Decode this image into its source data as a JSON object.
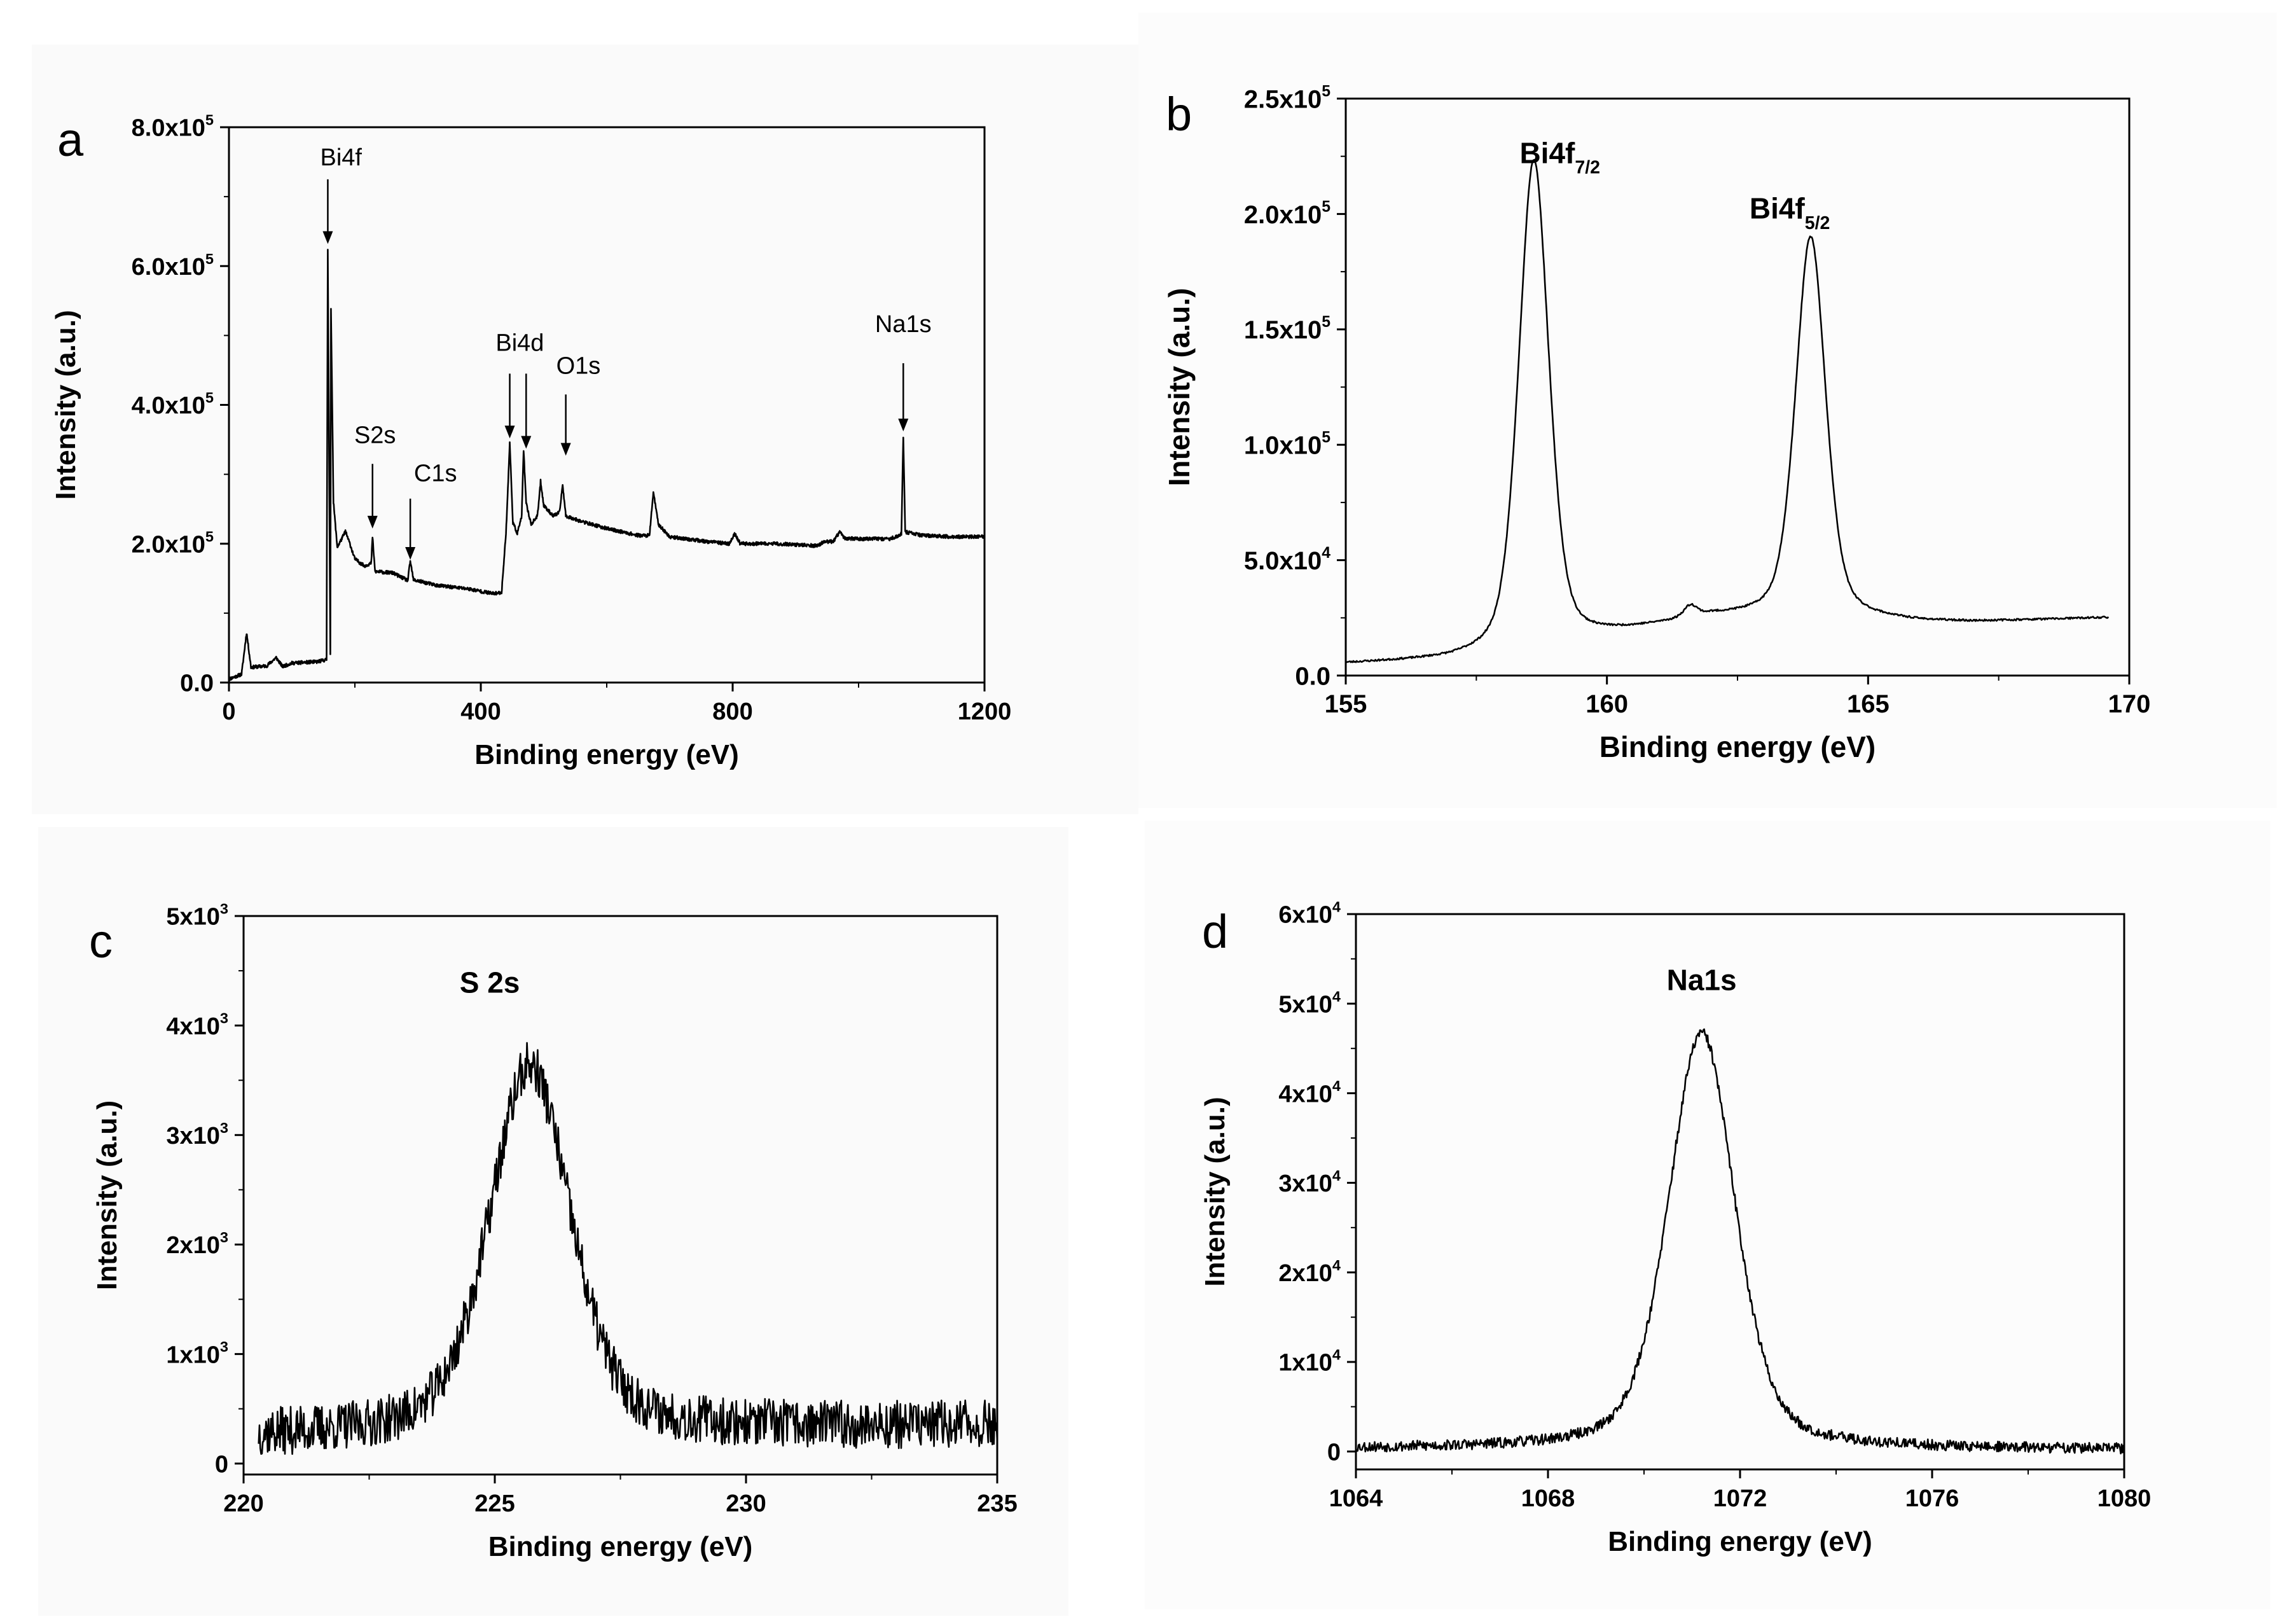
{
  "chart_data": [
    {
      "panel": "a",
      "type": "line",
      "xlabel": "Binding energy (eV)",
      "ylabel": "Intensity (a.u.)",
      "xlim": [
        0,
        1200
      ],
      "ylim": [
        0,
        800000
      ],
      "xticks": [
        0,
        400,
        800,
        1200
      ],
      "xtick_labels": [
        "0",
        "400",
        "800",
        "1200"
      ],
      "yticks": [
        0,
        200000,
        400000,
        600000,
        800000
      ],
      "ytick_labels": [
        {
          "m": "0.0",
          "e": ""
        },
        {
          "m": "2.0x10",
          "e": "5"
        },
        {
          "m": "4.0x10",
          "e": "5"
        },
        {
          "m": "6.0x10",
          "e": "5"
        },
        {
          "m": "8.0x10",
          "e": "5"
        }
      ],
      "baseline": [
        [
          0,
          5000
        ],
        [
          20,
          12000
        ],
        [
          28,
          72000
        ],
        [
          35,
          22000
        ],
        [
          60,
          24000
        ],
        [
          75,
          36000
        ],
        [
          85,
          23000
        ],
        [
          100,
          28000
        ],
        [
          140,
          30000
        ],
        [
          155,
          33000
        ],
        [
          157,
          625000
        ],
        [
          161,
          40000
        ],
        [
          162,
          540000
        ],
        [
          166,
          260000
        ],
        [
          172,
          195000
        ],
        [
          178,
          205000
        ],
        [
          185,
          218000
        ],
        [
          192,
          200000
        ],
        [
          200,
          178000
        ],
        [
          215,
          168000
        ],
        [
          226,
          172000
        ],
        [
          228,
          210000
        ],
        [
          232,
          160000
        ],
        [
          260,
          158000
        ],
        [
          284,
          147000
        ],
        [
          288,
          175000
        ],
        [
          293,
          148000
        ],
        [
          330,
          140000
        ],
        [
          380,
          135000
        ],
        [
          420,
          128000
        ],
        [
          433,
          130000
        ],
        [
          440,
          215000
        ],
        [
          446,
          345000
        ],
        [
          451,
          230000
        ],
        [
          458,
          215000
        ],
        [
          465,
          240000
        ],
        [
          468,
          335000
        ],
        [
          472,
          258000
        ],
        [
          480,
          228000
        ],
        [
          490,
          240000
        ],
        [
          495,
          290000
        ],
        [
          500,
          255000
        ],
        [
          515,
          240000
        ],
        [
          525,
          245000
        ],
        [
          530,
          285000
        ],
        [
          535,
          240000
        ],
        [
          560,
          232000
        ],
        [
          600,
          222000
        ],
        [
          650,
          212000
        ],
        [
          668,
          212000
        ],
        [
          674,
          275000
        ],
        [
          682,
          228000
        ],
        [
          700,
          210000
        ],
        [
          760,
          203000
        ],
        [
          795,
          200000
        ],
        [
          803,
          215000
        ],
        [
          812,
          200000
        ],
        [
          870,
          200000
        ],
        [
          935,
          197000
        ],
        [
          945,
          203000
        ],
        [
          960,
          203000
        ],
        [
          970,
          217000
        ],
        [
          978,
          208000
        ],
        [
          1000,
          207000
        ],
        [
          1050,
          207000
        ],
        [
          1065,
          212000
        ],
        [
          1068,
          215000
        ],
        [
          1071,
          355000
        ],
        [
          1074,
          217000
        ],
        [
          1100,
          212000
        ],
        [
          1150,
          210000
        ],
        [
          1200,
          210000
        ]
      ],
      "noise": 2500,
      "annotations": [
        {
          "label": "Bi4f",
          "x": 157,
          "tip": 630000,
          "tail": 725000,
          "text_y": 745000,
          "text_x": 178
        },
        {
          "label": "S2s",
          "x": 228,
          "tip": 220000,
          "tail": 315000,
          "text_y": 345000,
          "text_x": 232
        },
        {
          "label": "C1s",
          "x": 288,
          "tip": 175000,
          "tail": 265000,
          "text_y": 290000,
          "text_x": 328
        },
        {
          "label": "Bi4d",
          "x": 446,
          "tip": 350000,
          "tail": 445000,
          "text_y": 478000,
          "text_x": 462
        },
        {
          "label": "",
          "x": 472,
          "tip": 335000,
          "tail": 445000,
          "text_y": 0,
          "text_x": 0
        },
        {
          "label": "O1s",
          "x": 535,
          "tip": 325000,
          "tail": 415000,
          "text_y": 445000,
          "text_x": 555
        },
        {
          "label": "Na1s",
          "x": 1071,
          "tip": 360000,
          "tail": 460000,
          "text_y": 505000,
          "text_x": 1071
        }
      ]
    },
    {
      "panel": "b",
      "type": "line",
      "xlabel": "Binding energy (eV)",
      "ylabel": "Intensity (a.u.)",
      "xlim": [
        155,
        170
      ],
      "ylim": [
        0,
        250000
      ],
      "xticks": [
        155,
        160,
        165,
        170
      ],
      "xtick_labels": [
        "155",
        "160",
        "165",
        "170"
      ],
      "yticks": [
        0,
        50000,
        100000,
        150000,
        200000,
        250000
      ],
      "ytick_labels": [
        {
          "m": "0.0",
          "e": ""
        },
        {
          "m": "5.0x10",
          "e": "4"
        },
        {
          "m": "1.0x10",
          "e": "5"
        },
        {
          "m": "1.5x10",
          "e": "5"
        },
        {
          "m": "2.0x10",
          "e": "5"
        },
        {
          "m": "2.5x10",
          "e": "5"
        }
      ],
      "xrange": [
        155,
        169.6
      ],
      "baseline": [
        [
          155,
          5000
        ],
        [
          157,
          6500
        ],
        [
          158,
          9000
        ],
        [
          160,
          17000
        ],
        [
          162,
          25000
        ],
        [
          164,
          25000
        ],
        [
          166,
          23000
        ],
        [
          167,
          23000
        ],
        [
          169.6,
          25000
        ]
      ],
      "peaks": [
        [
          158.6,
          212000,
          0.34
        ],
        [
          163.9,
          165000,
          0.34
        ],
        [
          161.6,
          5000,
          0.15
        ]
      ],
      "noise": 400,
      "annotations": [
        {
          "main": "Bi4f",
          "sub": "7/2",
          "x": 159.1,
          "y": 222000
        },
        {
          "main": "Bi4f",
          "sub": "5/2",
          "x": 163.5,
          "y": 198000
        }
      ]
    },
    {
      "panel": "c",
      "type": "line",
      "xlabel": "Binding energy (eV)",
      "ylabel": "Intensity (a.u.)",
      "xlim": [
        220,
        235
      ],
      "ylim": [
        -100,
        5000
      ],
      "xticks": [
        220,
        225,
        230,
        235
      ],
      "xtick_labels": [
        "220",
        "225",
        "230",
        "235"
      ],
      "yticks": [
        0,
        1000,
        2000,
        3000,
        4000,
        5000
      ],
      "ytick_labels": [
        {
          "m": "0",
          "e": ""
        },
        {
          "m": "1x10",
          "e": "3"
        },
        {
          "m": "2x10",
          "e": "3"
        },
        {
          "m": "3x10",
          "e": "3"
        },
        {
          "m": "4x10",
          "e": "3"
        },
        {
          "m": "5x10",
          "e": "3"
        }
      ],
      "xrange": [
        220.3,
        235
      ],
      "baseline": [
        [
          220.3,
          250
        ],
        [
          235,
          350
        ]
      ],
      "peaks": [
        [
          225.7,
          3350,
          0.95
        ]
      ],
      "noise": 220,
      "annotations": [
        {
          "main": "S 2s",
          "sub": "",
          "x": 224.9,
          "y": 4300
        }
      ]
    },
    {
      "panel": "d",
      "type": "line",
      "xlabel": "Binding energy (eV)",
      "ylabel": "Intensity (a.u.)",
      "xlim": [
        1064,
        1080
      ],
      "ylim": [
        -2000,
        60000
      ],
      "xticks": [
        1064,
        1068,
        1072,
        1076,
        1080
      ],
      "xtick_labels": [
        "1064",
        "1068",
        "1072",
        "1076",
        "1080"
      ],
      "yticks": [
        0,
        10000,
        20000,
        30000,
        40000,
        50000,
        60000
      ],
      "ytick_labels": [
        {
          "m": "0",
          "e": ""
        },
        {
          "m": "1x10",
          "e": "4"
        },
        {
          "m": "2x10",
          "e": "4"
        },
        {
          "m": "3x10",
          "e": "4"
        },
        {
          "m": "4x10",
          "e": "4"
        },
        {
          "m": "5x10",
          "e": "4"
        }
      ],
      "ytick_extra": {
        "m": "6x10",
        "e": "4"
      },
      "xrange": [
        1064,
        1080
      ],
      "baseline": [
        [
          1064,
          300
        ],
        [
          1080,
          200
        ]
      ],
      "peaks": [
        [
          1071.2,
          46500,
          0.82
        ]
      ],
      "noise": 600,
      "annotations": [
        {
          "main": "Na1s",
          "sub": "",
          "x": 1071.2,
          "y": 51500
        }
      ]
    }
  ]
}
